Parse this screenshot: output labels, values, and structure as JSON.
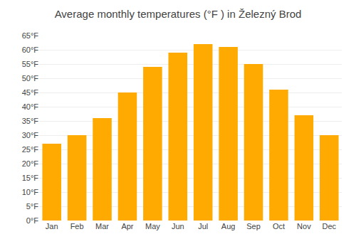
{
  "chart_data": {
    "type": "bar",
    "title": "Average monthly temperatures (°F ) in Železný Brod",
    "categories": [
      "Jan",
      "Feb",
      "Mar",
      "Apr",
      "May",
      "Jun",
      "Jul",
      "Aug",
      "Sep",
      "Oct",
      "Nov",
      "Dec"
    ],
    "values": [
      27,
      30,
      36,
      45,
      54,
      59,
      62,
      61,
      55,
      46,
      37,
      30
    ],
    "color": "#FFAA00",
    "ylim": [
      0,
      65
    ],
    "yticks": [
      {
        "value": 0,
        "label": "0°F"
      },
      {
        "value": 5,
        "label": "5°F"
      },
      {
        "value": 10,
        "label": "10°F"
      },
      {
        "value": 15,
        "label": "15°F"
      },
      {
        "value": 20,
        "label": "20°F"
      },
      {
        "value": 25,
        "label": "25°F"
      },
      {
        "value": 30,
        "label": "30°F"
      },
      {
        "value": 35,
        "label": "35°F"
      },
      {
        "value": 40,
        "label": "40°F"
      },
      {
        "value": 45,
        "label": "45°F"
      },
      {
        "value": 50,
        "label": "50°F"
      },
      {
        "value": 55,
        "label": "55°F"
      },
      {
        "value": 60,
        "label": "60°F"
      },
      {
        "value": 65,
        "label": "65°F"
      }
    ],
    "grid": true
  }
}
